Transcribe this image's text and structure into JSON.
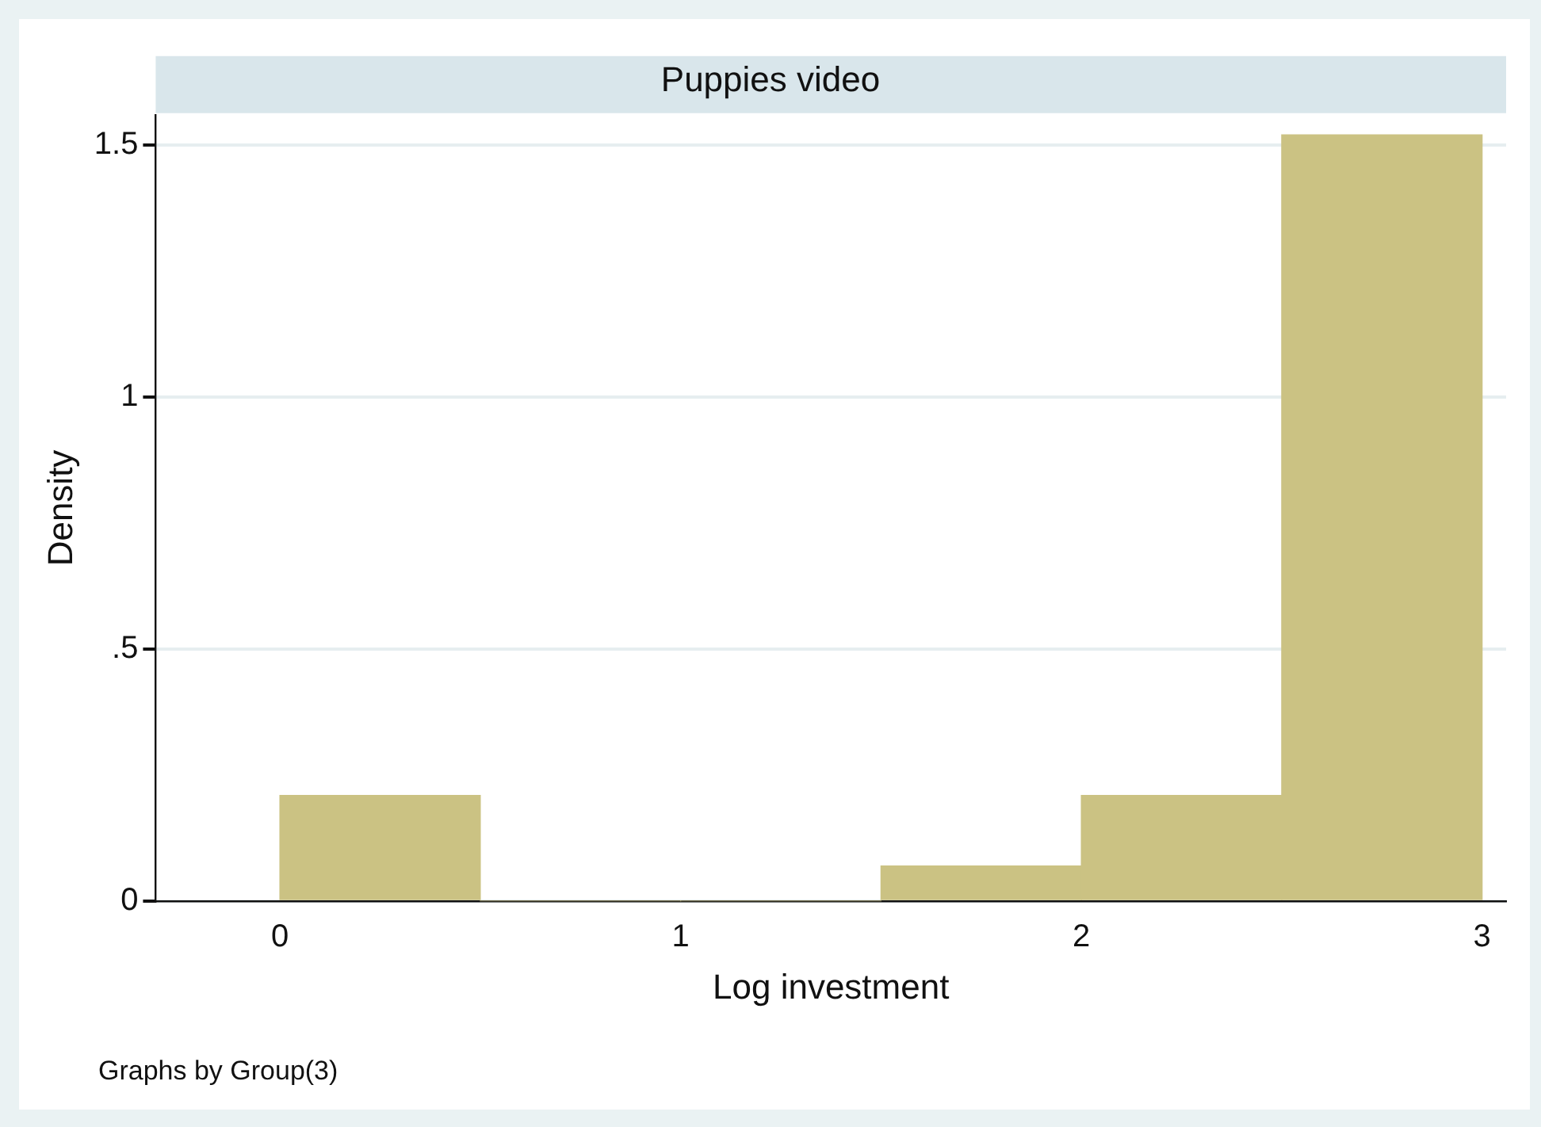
{
  "chart_data": {
    "type": "histogram",
    "title": "Puppies video",
    "xlabel": "Log investment",
    "ylabel": "Density",
    "bins": [
      0,
      0.5,
      1,
      1.5,
      2,
      2.5,
      3
    ],
    "values": [
      0.21,
      0,
      0,
      0.07,
      0.21,
      1.52
    ],
    "color": "#cbc283",
    "xlim": [
      -0.31,
      3.06
    ],
    "xticks": [
      0,
      1,
      2,
      3
    ],
    "ylim": [
      0,
      1.56
    ],
    "yticks": [
      0,
      {
        "value": 0.5,
        "label": ".5"
      },
      1,
      1.5
    ],
    "grid": "y",
    "legend": false,
    "annotations": [
      "Graphs by Group(3)"
    ]
  }
}
